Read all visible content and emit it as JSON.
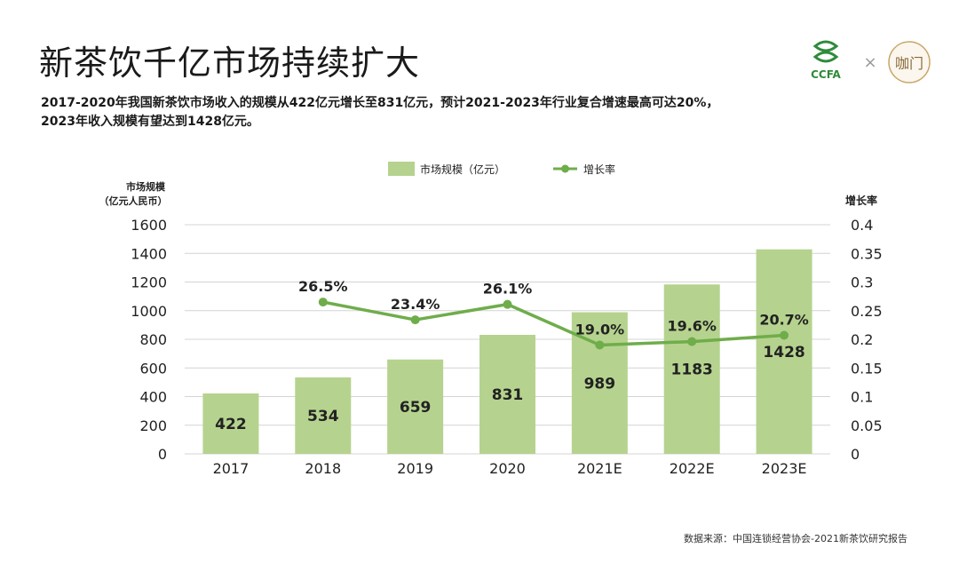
{
  "title": "新茶饮千亿市场持续扩大",
  "subtitle_lines": [
    "2017-2020年我国新茶饮市场收入的规模从422亿元增长至831亿元，预计2021-2023年行业复合增速最高可达20%，",
    "2023年收入规模有望达到1428亿元。"
  ],
  "logos": {
    "left_text": "CCFA",
    "separator": "×",
    "right_text": "咖门"
  },
  "source": "数据来源：中国连锁经营协会-2021新茶饮研究报告",
  "colors": {
    "bar": "#b5d38e",
    "line": "#6fad4b",
    "grid": "#d4d4d4",
    "text": "#222222"
  },
  "chart_data": {
    "type": "bar",
    "categories": [
      "2017",
      "2018",
      "2019",
      "2020",
      "2021E",
      "2022E",
      "2023E"
    ],
    "series": [
      {
        "name": "市场规模（亿元）",
        "kind": "bar",
        "axis": "left",
        "values": [
          422,
          534,
          659,
          831,
          989,
          1183,
          1428
        ],
        "labels": [
          "422",
          "534",
          "659",
          "831",
          "989",
          "1183",
          "1428"
        ]
      },
      {
        "name": "增长率",
        "kind": "line",
        "axis": "right",
        "values": [
          null,
          0.265,
          0.234,
          0.261,
          0.19,
          0.196,
          0.207
        ],
        "labels": [
          null,
          "26.5%",
          "23.4%",
          "26.1%",
          "19.0%",
          "19.6%",
          "20.7%"
        ]
      }
    ],
    "ylabel_left": [
      "市场规模",
      "（亿元人民币）"
    ],
    "ylabel_right": "增长率",
    "ylim_left": [
      0,
      1600
    ],
    "yticks_left": [
      "0",
      "200",
      "400",
      "600",
      "800",
      "1000",
      "1200",
      "1400",
      "1600"
    ],
    "ylim_right": [
      0,
      0.4
    ],
    "yticks_right": [
      "0",
      "0.05",
      "0.1",
      "0.15",
      "0.2",
      "0.25",
      "0.3",
      "0.35",
      "0.4"
    ],
    "grid": true,
    "legend": "top-center"
  }
}
